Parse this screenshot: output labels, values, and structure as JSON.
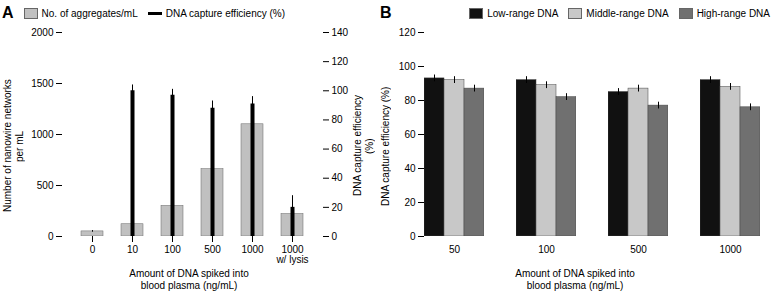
{
  "chart_data": [
    {
      "type": "bar",
      "title": "A",
      "categories": [
        "0",
        "10",
        "100",
        "500",
        "1000",
        "1000\nw/ lysis"
      ],
      "xlabel": "Amount of DNA spiked into\nblood plasma (ng/mL)",
      "ylabel": "Number of nanowire networks\nper mL",
      "y2label": "DNA capture efficiency\n(%)",
      "ylim": [
        0,
        2000
      ],
      "yticks": [
        0,
        500,
        1000,
        1500,
        2000
      ],
      "y2lim": [
        0,
        140
      ],
      "y2ticks": [
        0,
        20,
        40,
        60,
        80,
        100,
        120,
        140
      ],
      "legend": "upper left",
      "grid": false,
      "series": [
        {
          "name": "No. of aggregates/mL",
          "type": "bar",
          "color": "#c0c0c0",
          "values": [
            50,
            120,
            300,
            660,
            1100,
            220
          ],
          "yerr": [
            8,
            12,
            18,
            35,
            35,
            18
          ]
        },
        {
          "name": "DNA capture efficiency (%)",
          "type": "rule",
          "axis": "y2",
          "color": "#000000",
          "values": [
            0,
            100,
            97,
            88,
            91,
            20
          ],
          "yerr": [
            0,
            4,
            4,
            5,
            5,
            8
          ]
        }
      ]
    },
    {
      "type": "bar",
      "title": "B",
      "categories": [
        "50",
        "100",
        "500",
        "1000"
      ],
      "xlabel": "Amount of DNA spiked into\nblood plasma (ng/mL)",
      "ylabel": "DNA capture efficiency (%)",
      "ylim": [
        0,
        120
      ],
      "yticks": [
        0,
        20,
        40,
        60,
        80,
        100,
        120
      ],
      "legend": "upper right",
      "grid": false,
      "series": [
        {
          "name": "Low-range DNA",
          "color": "#111111",
          "values": [
            93,
            92,
            85,
            92
          ],
          "yerr": [
            2,
            2,
            2,
            2
          ]
        },
        {
          "name": "Middle-range DNA",
          "color": "#c8c8c8",
          "values": [
            92,
            89,
            87,
            88
          ],
          "yerr": [
            2,
            2,
            2,
            2
          ]
        },
        {
          "name": "High-range DNA",
          "color": "#707070",
          "values": [
            87,
            82,
            77,
            76
          ],
          "yerr": [
            2,
            2,
            2,
            2
          ]
        }
      ]
    }
  ]
}
